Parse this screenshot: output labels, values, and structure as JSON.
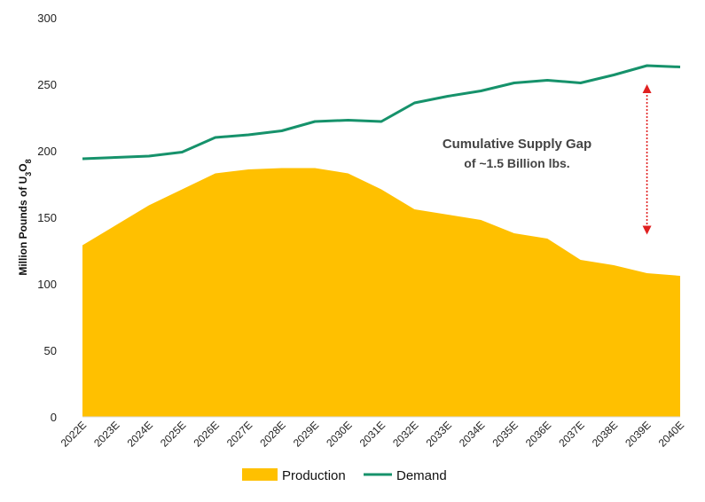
{
  "chart_data": {
    "type": "area",
    "title": "",
    "xlabel": "",
    "ylabel_main": "Million Pounds of U",
    "ylabel_sub1": "3",
    "ylabel_mid": "O",
    "ylabel_sub2": "8",
    "ylim": [
      0,
      300
    ],
    "yticks": [
      0,
      50,
      100,
      150,
      200,
      250,
      300
    ],
    "categories": [
      "2022E",
      "2023E",
      "2024E",
      "2025E",
      "2026E",
      "2027E",
      "2028E",
      "2029E",
      "2030E",
      "2031E",
      "2032E",
      "2033E",
      "2034E",
      "2035E",
      "2036E",
      "2037E",
      "2038E",
      "2039E",
      "2040E"
    ],
    "series": [
      {
        "name": "Production",
        "kind": "area",
        "color": "#FFC000",
        "values": [
          129,
          144,
          159,
          171,
          183,
          186,
          187,
          187,
          183,
          171,
          156,
          152,
          148,
          138,
          134,
          118,
          114,
          108,
          106
        ]
      },
      {
        "name": "Demand",
        "kind": "line",
        "color": "#16926B",
        "values": [
          194,
          195,
          196,
          199,
          210,
          212,
          215,
          222,
          223,
          222,
          236,
          241,
          245,
          251,
          253,
          251,
          257,
          264,
          263
        ]
      }
    ],
    "annotation": {
      "line1": "Cumulative Supply Gap",
      "line2": "of ~1.5 Billion lbs.",
      "arrow_color": "#E02020",
      "arrow_category": "2039E",
      "arrow_from": 250,
      "arrow_to": 137
    },
    "grid": false,
    "legend_position": "bottom"
  }
}
